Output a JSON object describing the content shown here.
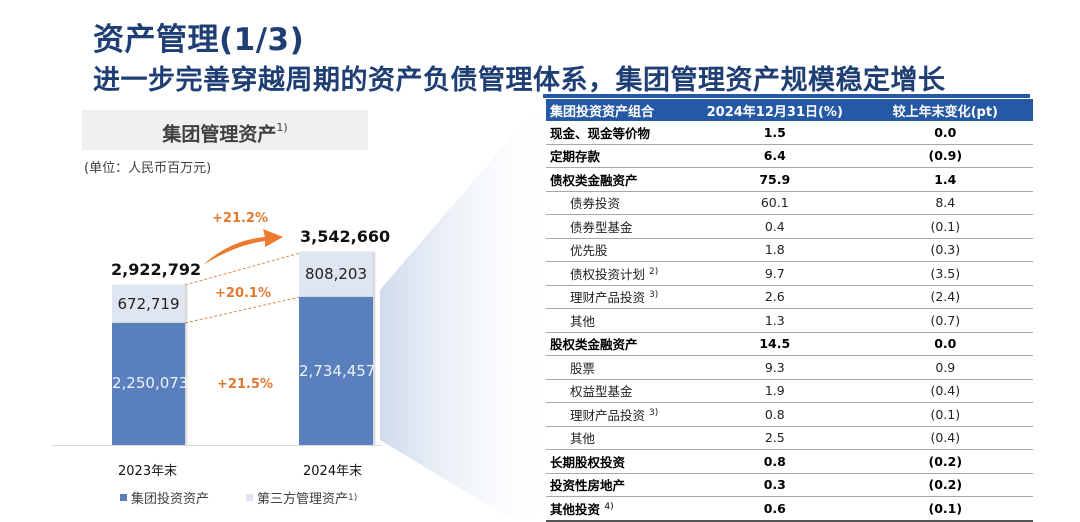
{
  "header": {
    "title": "资产管理(1/3)",
    "subtitle": "进一步完善穿越周期的资产负债管理体系，集团管理资产规模稳定增长"
  },
  "colors": {
    "title": "#1f3f74",
    "accent_blue": "#2659a5",
    "group_bar": "#5a7fbd",
    "third_bar": "#dfe6f1",
    "growth_orange": "#e07a2e"
  },
  "chart": {
    "heading": "集团管理资产",
    "heading_note": "1)",
    "unit": "(单位：人民币百万元)",
    "growth_total": "+21.2%",
    "growth_third": "+20.1%",
    "growth_group": "+21.5%",
    "bars": [
      {
        "label": "2023年末",
        "total": "2,922,792",
        "third": "672,719",
        "group": "2,250,073"
      },
      {
        "label": "2024年末",
        "total": "3,542,660",
        "third": "808,203",
        "group": "2,734,457"
      }
    ],
    "legend": [
      {
        "label": "集团投资资产",
        "note": ""
      },
      {
        "label": "第三方管理资产",
        "note": "1)"
      }
    ]
  },
  "chart_data": {
    "type": "bar",
    "stacked": true,
    "title": "集团管理资产",
    "subtitle": "(单位：人民币百万元)",
    "categories": [
      "2023年末",
      "2024年末"
    ],
    "series": [
      {
        "name": "集团投资资产",
        "values": [
          2250073,
          2734457
        ]
      },
      {
        "name": "第三方管理资产",
        "values": [
          672719,
          808203
        ]
      }
    ],
    "totals": [
      2922792,
      3542660
    ],
    "annotations": [
      "+21.2% (总额)",
      "+20.1% (第三方管理资产)",
      "+21.5% (集团投资资产)"
    ],
    "legend_position": "bottom",
    "grid": false
  },
  "table": {
    "headers": [
      "集团投资资产组合",
      "2024年12月31日(%)",
      "较上年末变化(pt)"
    ],
    "rows": [
      {
        "name": "现金、现金等价物",
        "note": "",
        "value": "1.5",
        "change": "0.0",
        "level": "bold"
      },
      {
        "name": "定期存款",
        "note": "",
        "value": "6.4",
        "change": "(0.9)",
        "level": "bold"
      },
      {
        "name": "债权类金融资产",
        "note": "",
        "value": "75.9",
        "change": "1.4",
        "level": "bold"
      },
      {
        "name": "债券投资",
        "note": "",
        "value": "60.1",
        "change": "8.4",
        "level": "sub"
      },
      {
        "name": "债券型基金",
        "note": "",
        "value": "0.4",
        "change": "(0.1)",
        "level": "sub"
      },
      {
        "name": "优先股",
        "note": "",
        "value": "1.8",
        "change": "(0.3)",
        "level": "sub"
      },
      {
        "name": "债权投资计划",
        "note": "2)",
        "value": "9.7",
        "change": "(3.5)",
        "level": "sub"
      },
      {
        "name": "理财产品投资",
        "note": "3)",
        "value": "2.6",
        "change": "(2.4)",
        "level": "sub"
      },
      {
        "name": "其他",
        "note": "",
        "value": "1.3",
        "change": "(0.7)",
        "level": "sub"
      },
      {
        "name": "股权类金融资产",
        "note": "",
        "value": "14.5",
        "change": "0.0",
        "level": "bold"
      },
      {
        "name": "股票",
        "note": "",
        "value": "9.3",
        "change": "0.9",
        "level": "sub"
      },
      {
        "name": "权益型基金",
        "note": "",
        "value": "1.9",
        "change": "(0.4)",
        "level": "sub"
      },
      {
        "name": "理财产品投资",
        "note": "3)",
        "value": "0.8",
        "change": "(0.1)",
        "level": "sub"
      },
      {
        "name": "其他",
        "note": "",
        "value": "2.5",
        "change": "(0.4)",
        "level": "sub"
      },
      {
        "name": "长期股权投资",
        "note": "",
        "value": "0.8",
        "change": "(0.2)",
        "level": "bold"
      },
      {
        "name": "投资性房地产",
        "note": "",
        "value": "0.3",
        "change": "(0.2)",
        "level": "bold"
      },
      {
        "name": "其他投资",
        "note": "4)",
        "value": "0.6",
        "change": "(0.1)",
        "level": "bold"
      }
    ]
  }
}
